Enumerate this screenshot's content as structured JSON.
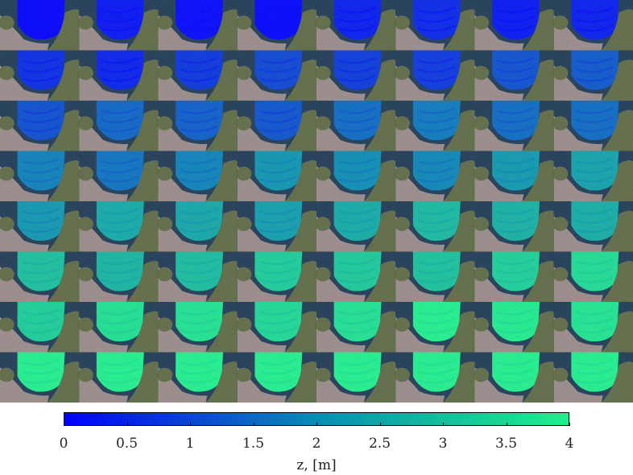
{
  "figure": {
    "grid": {
      "rows": 8,
      "cols": 8
    },
    "colormap": {
      "min_color": "#0000ff",
      "max_color": "#1ef08c"
    },
    "background_colors": {
      "sea": "#1f3a55",
      "land_green": "#5d6a45",
      "land_urban": "#9a8a8a"
    }
  },
  "colorbar": {
    "label": "z, [m]",
    "range": [
      0,
      4
    ],
    "ticks": [
      "0",
      "0.5",
      "1",
      "1.5",
      "2",
      "2.5",
      "3",
      "3.5",
      "4"
    ]
  }
}
